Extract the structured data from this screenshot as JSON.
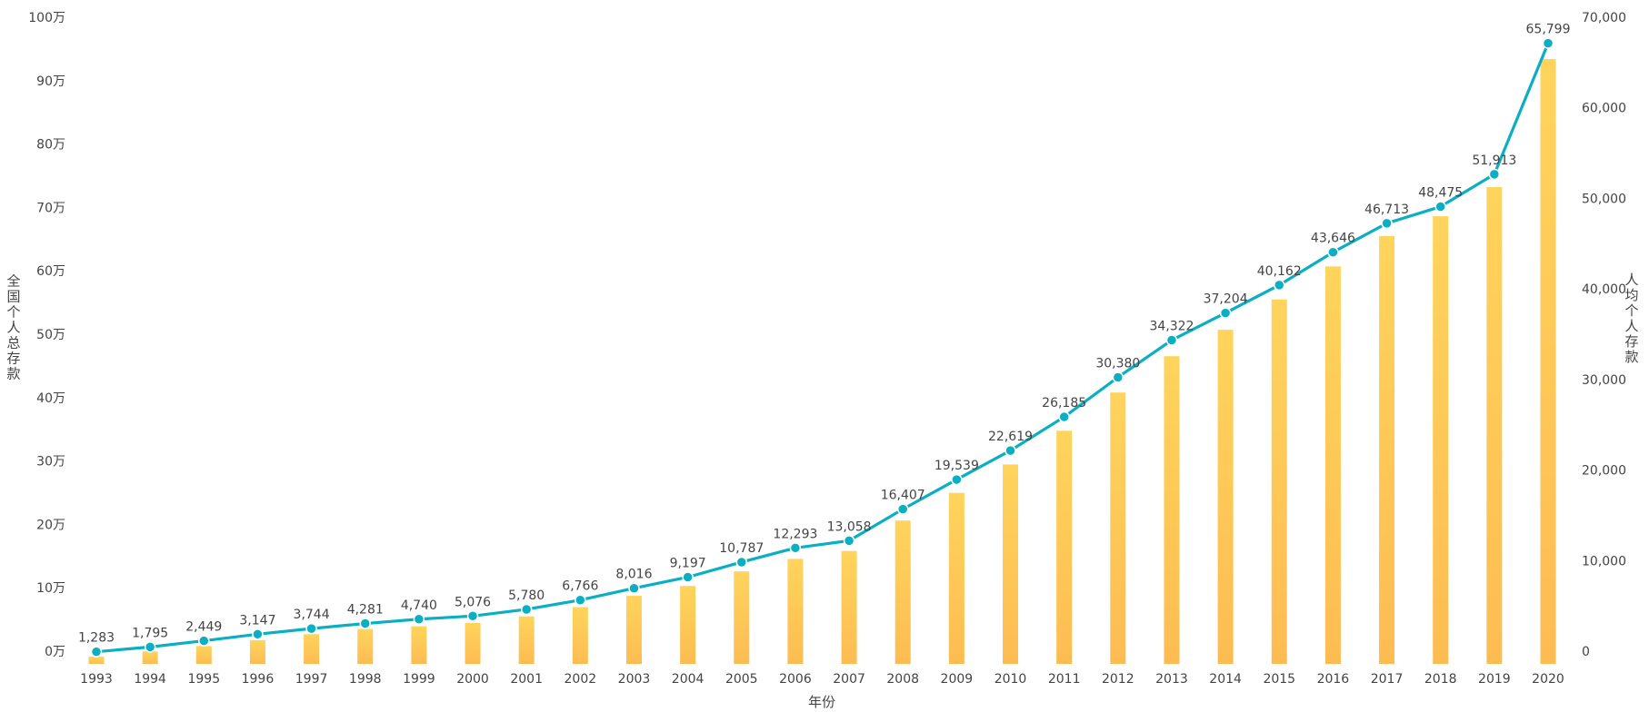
{
  "chart_data": {
    "type": "bar+line",
    "xlabel": "年份",
    "ylabel_left": "全国个人总存款",
    "ylabel_right": "人均个人存款",
    "categories": [
      "1993",
      "1994",
      "1995",
      "1996",
      "1997",
      "1998",
      "1999",
      "2000",
      "2001",
      "2002",
      "2003",
      "2004",
      "2005",
      "2006",
      "2007",
      "2008",
      "2009",
      "2010",
      "2011",
      "2012",
      "2013",
      "2014",
      "2015",
      "2016",
      "2017",
      "2018",
      "2019",
      "2020"
    ],
    "left_axis": {
      "min": 0,
      "max": 100,
      "ticks": [
        0,
        10,
        20,
        30,
        40,
        50,
        60,
        70,
        80,
        90,
        100
      ],
      "tick_suffix": "万"
    },
    "right_axis": {
      "min": 0,
      "max": 70000,
      "ticks": [
        "0",
        "10,000",
        "20,000",
        "30,000",
        "40,000",
        "50,000",
        "60,000",
        "70,000"
      ]
    },
    "series": [
      {
        "name": "全国个人总存款",
        "type": "bar",
        "axis": "left",
        "color": "#ffc653",
        "values": [
          1.1,
          1.9,
          2.7,
          3.6,
          4.5,
          5.3,
          5.7,
          6.2,
          7.2,
          8.6,
          10.3,
          11.8,
          14.0,
          15.9,
          17.1,
          21.7,
          25.9,
          30.2,
          35.3,
          41.1,
          46.6,
          50.6,
          55.2,
          60.2,
          64.8,
          67.8,
          72.2,
          91.6
        ]
      },
      {
        "name": "人均个人存款",
        "type": "line",
        "axis": "right",
        "color": "#0aafc3",
        "values": [
          1283,
          1795,
          2449,
          3147,
          3744,
          4281,
          4740,
          5076,
          5780,
          6766,
          8016,
          9197,
          10787,
          12293,
          13058,
          16407,
          19539,
          22619,
          26185,
          30380,
          34322,
          37204,
          40162,
          43646,
          46713,
          48475,
          51913,
          65799
        ],
        "labels": [
          "1,283",
          "1,795",
          "2,449",
          "3,147",
          "3,744",
          "4,281",
          "4,740",
          "5,076",
          "5,780",
          "6,766",
          "8,016",
          "9,197",
          "10,787",
          "12,293",
          "13,058",
          "16,407",
          "19,539",
          "22,619",
          "26,185",
          "30,380",
          "34,322",
          "37,204",
          "40,162",
          "43,646",
          "46,713",
          "48,475",
          "51,913",
          "65,799"
        ]
      }
    ]
  }
}
